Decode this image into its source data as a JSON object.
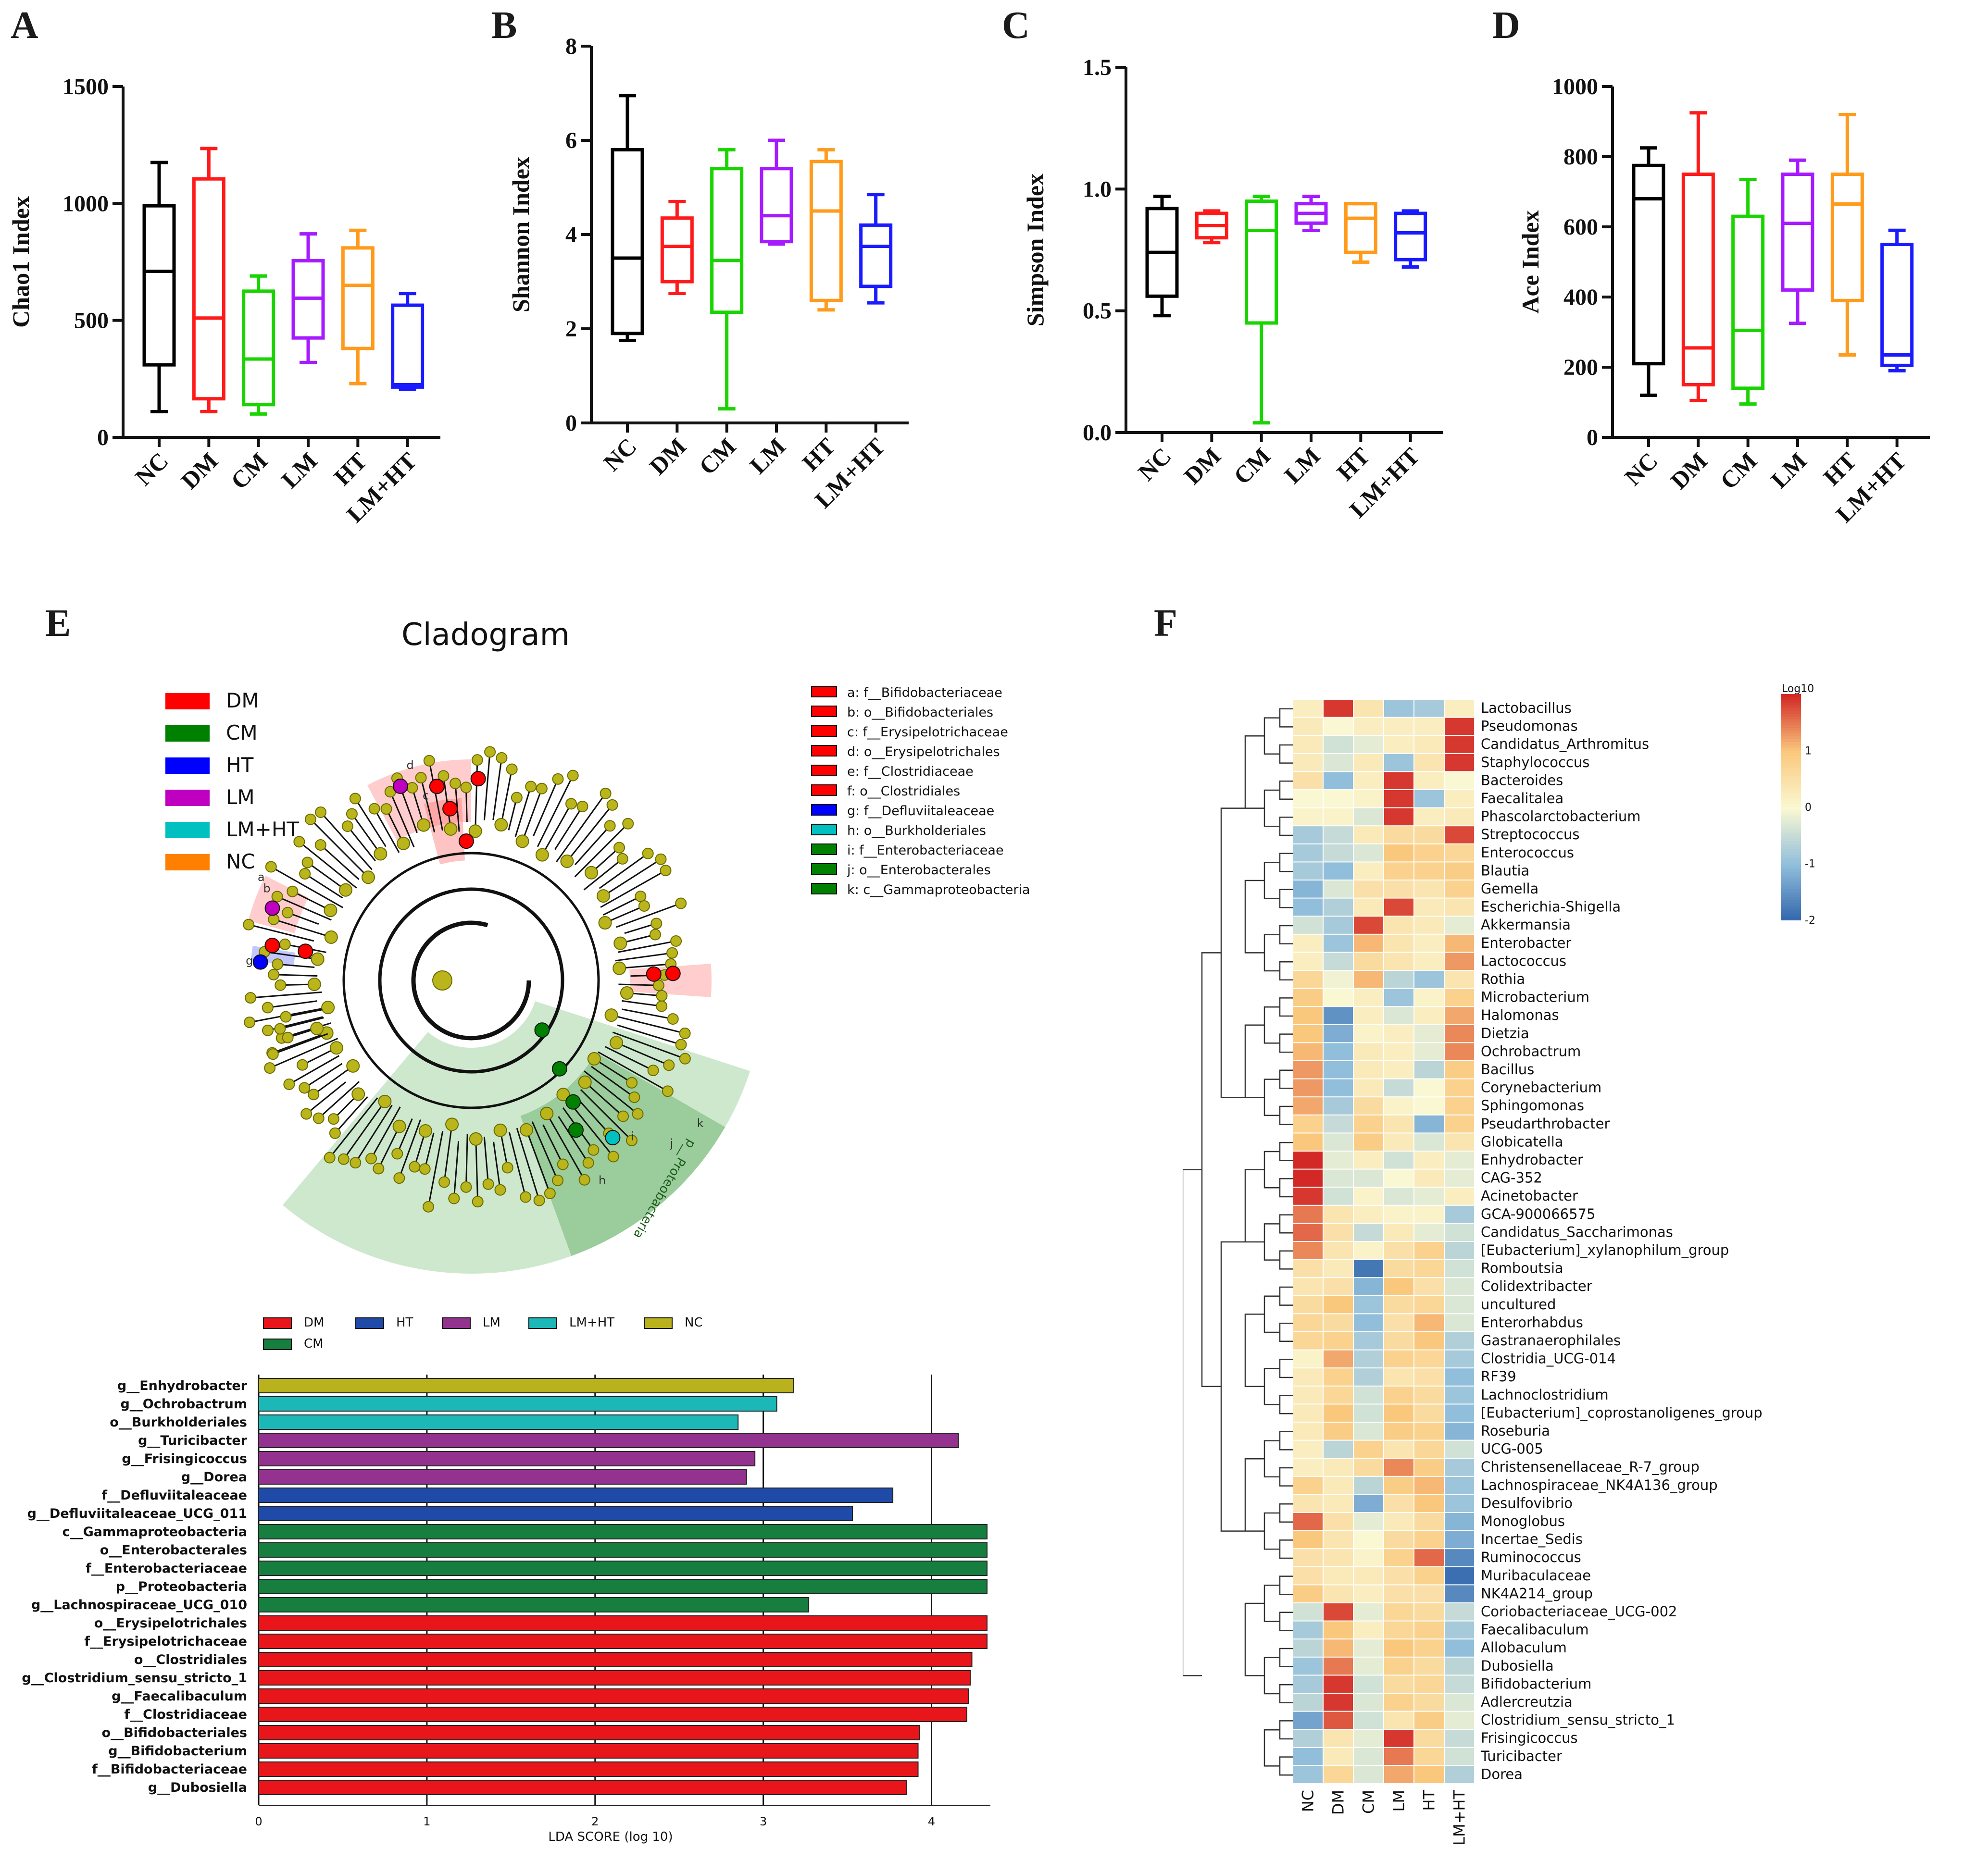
{
  "panels": {
    "a": "A",
    "b": "B",
    "c": "C",
    "d": "D",
    "e": "E",
    "f": "F"
  },
  "groups": [
    "NC",
    "DM",
    "CM",
    "LM",
    "HT",
    "LM+HT"
  ],
  "group_colors": {
    "NC": "#000000",
    "DM": "#ff1a1a",
    "CM": "#19d400",
    "LM": "#a51aff",
    "HT": "#ff9a1a",
    "LM+HT": "#1a1aff"
  },
  "chart_data": [
    {
      "type": "box",
      "panel": "A",
      "ylabel": "Chao1 Index",
      "ylim": [
        0,
        1500
      ],
      "yticks": [
        0,
        500,
        1000,
        1500
      ],
      "categories": [
        "NC",
        "DM",
        "CM",
        "LM",
        "HT",
        "LM+HT"
      ],
      "boxes": [
        {
          "min": 110,
          "q1": 310,
          "median": 710,
          "q3": 990,
          "max": 1175
        },
        {
          "min": 110,
          "q1": 165,
          "median": 510,
          "q3": 1105,
          "max": 1235
        },
        {
          "min": 100,
          "q1": 140,
          "median": 335,
          "q3": 625,
          "max": 690
        },
        {
          "min": 320,
          "q1": 425,
          "median": 595,
          "q3": 755,
          "max": 870
        },
        {
          "min": 230,
          "q1": 380,
          "median": 650,
          "q3": 810,
          "max": 885
        },
        {
          "min": 205,
          "q1": 215,
          "median": 225,
          "q3": 565,
          "max": 615
        }
      ]
    },
    {
      "type": "box",
      "panel": "B",
      "ylabel": "Shannon Index",
      "ylim": [
        0,
        8
      ],
      "yticks": [
        0,
        2,
        4,
        6,
        8
      ],
      "categories": [
        "NC",
        "DM",
        "CM",
        "LM",
        "HT",
        "LM+HT"
      ],
      "boxes": [
        {
          "min": 1.75,
          "q1": 1.9,
          "median": 3.5,
          "q3": 5.8,
          "max": 6.95
        },
        {
          "min": 2.75,
          "q1": 3.0,
          "median": 3.75,
          "q3": 4.35,
          "max": 4.7
        },
        {
          "min": 0.3,
          "q1": 2.35,
          "median": 3.45,
          "q3": 5.4,
          "max": 5.8
        },
        {
          "min": 3.8,
          "q1": 3.85,
          "median": 4.4,
          "q3": 5.4,
          "max": 6.0
        },
        {
          "min": 2.4,
          "q1": 2.6,
          "median": 4.5,
          "q3": 5.55,
          "max": 5.8
        },
        {
          "min": 2.55,
          "q1": 2.9,
          "median": 3.75,
          "q3": 4.2,
          "max": 4.85
        }
      ]
    },
    {
      "type": "box",
      "panel": "C",
      "ylabel": "Simpson Index",
      "ylim": [
        0,
        1.5
      ],
      "yticks": [
        "0.0",
        "0.5",
        "1.0",
        "1.5"
      ],
      "categories": [
        "NC",
        "DM",
        "CM",
        "LM",
        "HT",
        "LM+HT"
      ],
      "boxes": [
        {
          "min": 0.48,
          "q1": 0.56,
          "median": 0.74,
          "q3": 0.92,
          "max": 0.97
        },
        {
          "min": 0.78,
          "q1": 0.8,
          "median": 0.85,
          "q3": 0.9,
          "max": 0.91
        },
        {
          "min": 0.04,
          "q1": 0.45,
          "median": 0.83,
          "q3": 0.95,
          "max": 0.97
        },
        {
          "min": 0.83,
          "q1": 0.86,
          "median": 0.9,
          "q3": 0.94,
          "max": 0.97
        },
        {
          "min": 0.7,
          "q1": 0.74,
          "median": 0.88,
          "q3": 0.94,
          "max": 0.94
        },
        {
          "min": 0.68,
          "q1": 0.71,
          "median": 0.82,
          "q3": 0.9,
          "max": 0.91
        }
      ]
    },
    {
      "type": "box",
      "panel": "D",
      "ylabel": "Ace Index",
      "ylim": [
        0,
        1000
      ],
      "yticks": [
        0,
        200,
        400,
        600,
        800,
        1000
      ],
      "categories": [
        "NC",
        "DM",
        "CM",
        "LM",
        "HT",
        "LM+HT"
      ],
      "boxes": [
        {
          "min": 120,
          "q1": 210,
          "median": 680,
          "q3": 775,
          "max": 825
        },
        {
          "min": 105,
          "q1": 150,
          "median": 255,
          "q3": 750,
          "max": 925
        },
        {
          "min": 95,
          "q1": 140,
          "median": 305,
          "q3": 630,
          "max": 735
        },
        {
          "min": 325,
          "q1": 420,
          "median": 610,
          "q3": 750,
          "max": 790
        },
        {
          "min": 235,
          "q1": 390,
          "median": 665,
          "q3": 750,
          "max": 920
        },
        {
          "min": 190,
          "q1": 205,
          "median": 235,
          "q3": 550,
          "max": 590
        }
      ]
    },
    {
      "type": "bar",
      "panel": "E",
      "orientation": "horizontal",
      "xlabel": "LDA SCORE (log 10)",
      "xlim": [
        0,
        4.35
      ],
      "xticks": [
        0,
        1,
        2,
        3,
        4
      ],
      "legend": [
        {
          "label": "DM",
          "color": "#e8151b"
        },
        {
          "label": "HT",
          "color": "#1f4aa8"
        },
        {
          "label": "LM",
          "color": "#94338f"
        },
        {
          "label": "LM+HT",
          "color": "#1cb8b8"
        },
        {
          "label": "NC",
          "color": "#b9b21c"
        },
        {
          "label": "CM",
          "color": "#167e3e"
        }
      ],
      "bars": [
        {
          "label": "g__Enhydrobacter",
          "value": 3.18,
          "group": "NC"
        },
        {
          "label": "g__Ochrobactrum",
          "value": 3.08,
          "group": "LM+HT"
        },
        {
          "label": "o__Burkholderiales",
          "value": 2.85,
          "group": "LM+HT"
        },
        {
          "label": "g__Turicibacter",
          "value": 4.16,
          "group": "LM"
        },
        {
          "label": "g__Frisingicoccus",
          "value": 2.95,
          "group": "LM"
        },
        {
          "label": "g__Dorea",
          "value": 2.9,
          "group": "LM"
        },
        {
          "label": "f__Defluviitaleaceae",
          "value": 3.77,
          "group": "HT"
        },
        {
          "label": "g__Defluviitaleaceae_UCG_011",
          "value": 3.53,
          "group": "HT"
        },
        {
          "label": "c__Gammaproteobacteria",
          "value": 4.33,
          "group": "CM"
        },
        {
          "label": "o__Enterobacterales",
          "value": 4.33,
          "group": "CM"
        },
        {
          "label": "f__Enterobacteriaceae",
          "value": 4.33,
          "group": "CM"
        },
        {
          "label": "p__Proteobacteria",
          "value": 4.33,
          "group": "CM"
        },
        {
          "label": "g__Lachnospiraceae_UCG_010",
          "value": 3.27,
          "group": "CM"
        },
        {
          "label": "o__Erysipelotrichales",
          "value": 4.33,
          "group": "DM"
        },
        {
          "label": "f__Erysipelotrichaceae",
          "value": 4.33,
          "group": "DM"
        },
        {
          "label": "o__Clostridiales",
          "value": 4.24,
          "group": "DM"
        },
        {
          "label": "g__Clostridium_sensu_stricto_1",
          "value": 4.23,
          "group": "DM"
        },
        {
          "label": "g__Faecalibaculum",
          "value": 4.22,
          "group": "DM"
        },
        {
          "label": "f__Clostridiaceae",
          "value": 4.21,
          "group": "DM"
        },
        {
          "label": "o__Bifidobacteriales",
          "value": 3.93,
          "group": "DM"
        },
        {
          "label": "g__Bifidobacterium",
          "value": 3.92,
          "group": "DM"
        },
        {
          "label": "f__Bifidobacteriaceae",
          "value": 3.92,
          "group": "DM"
        },
        {
          "label": "g__Dubosiella",
          "value": 3.85,
          "group": "DM"
        }
      ]
    },
    {
      "type": "heatmap",
      "panel": "F",
      "colorbar_title": "Log10",
      "colorbar_ticks": [
        "1",
        "0",
        "-1",
        "-2"
      ],
      "vmin": -2,
      "vmax": 2,
      "columns": [
        "NC",
        "DM",
        "CM",
        "LM",
        "HT",
        "LM+HT"
      ],
      "rows": [
        "Lactobacillus",
        "Pseudomonas",
        "Candidatus_Arthromitus",
        "Staphylococcus",
        "Bacteroides",
        "Faecalitalea",
        "Phascolarctobacterium",
        "Streptococcus",
        "Enterococcus",
        "Blautia",
        "Gemella",
        "Escherichia-Shigella",
        "Akkermansia",
        "Enterobacter",
        "Lactococcus",
        "Rothia",
        "Microbacterium",
        "Halomonas",
        "Dietzia",
        "Ochrobactrum",
        "Bacillus",
        "Corynebacterium",
        "Sphingomonas",
        "Pseudarthrobacter",
        "Globicatella",
        "Enhydrobacter",
        "CAG-352",
        "Acinetobacter",
        "GCA-900066575",
        "Candidatus_Saccharimonas",
        "[Eubacterium]_xylanophilum_group",
        "Romboutsia",
        "Colidextribacter",
        "uncultured",
        "Enterorhabdus",
        "Gastranaerophilales",
        "Clostridia_UCG-014",
        "RF39",
        "Lachnoclostridium",
        "[Eubacterium]_coprostanoligenes_group",
        "Roseburia",
        "UCG-005",
        "Christensenellaceae_R-7_group",
        "Lachnospiraceae_NK4A136_group",
        "Desulfovibrio",
        "Monoglobus",
        "Incertae_Sedis",
        "Ruminococcus",
        "Muribaculaceae",
        "NK4A214_group",
        "Coriobacteriaceae_UCG-002",
        "Faecalibaculum",
        "Allobaculum",
        "Dubosiella",
        "Bifidobacterium",
        "Adlercreutzia",
        "Clostridium_sensu_stricto_1",
        "Frisingicoccus",
        "Turicibacter",
        "Dorea"
      ],
      "values": [
        [
          0.2,
          1.9,
          0.4,
          -0.9,
          -0.8,
          0.2
        ],
        [
          0.3,
          0.0,
          0.2,
          0.2,
          0.2,
          1.9
        ],
        [
          0.3,
          -0.4,
          -0.2,
          0.2,
          0.3,
          1.9
        ],
        [
          0.3,
          -0.3,
          0.3,
          -0.9,
          0.4,
          1.9
        ],
        [
          0.5,
          -1.0,
          0.2,
          1.9,
          0.2,
          0.0
        ],
        [
          0.0,
          0.0,
          0.1,
          1.9,
          -0.9,
          0.2
        ],
        [
          0.1,
          0.1,
          -0.3,
          1.9,
          0.2,
          0.3
        ],
        [
          -0.8,
          -0.5,
          0.3,
          0.6,
          0.6,
          1.8
        ],
        [
          -0.8,
          -0.5,
          -0.3,
          1.0,
          0.8,
          0.7
        ],
        [
          -0.8,
          -1.0,
          0.2,
          0.8,
          0.8,
          0.9
        ],
        [
          -1.1,
          -0.3,
          0.5,
          0.5,
          0.4,
          0.8
        ],
        [
          -1.0,
          -0.7,
          0.3,
          1.8,
          0.3,
          0.4
        ],
        [
          -0.4,
          -0.8,
          1.8,
          0.4,
          0.3,
          -0.2
        ],
        [
          0.2,
          -0.9,
          1.1,
          0.4,
          0.2,
          1.1
        ],
        [
          0.2,
          -0.5,
          0.6,
          0.4,
          0.2,
          1.3
        ],
        [
          0.7,
          -0.1,
          1.1,
          -0.6,
          -0.9,
          0.4
        ],
        [
          0.9,
          0.0,
          0.2,
          -0.9,
          0.1,
          0.8
        ],
        [
          1.0,
          -1.5,
          0.2,
          -0.3,
          0.2,
          1.2
        ],
        [
          1.0,
          -1.2,
          0.1,
          0.2,
          -0.2,
          1.4
        ],
        [
          1.1,
          -1.0,
          0.3,
          0.2,
          -0.2,
          1.4
        ],
        [
          1.3,
          -1.0,
          0.3,
          0.2,
          -0.6,
          0.9
        ],
        [
          1.3,
          -1.0,
          0.3,
          -0.5,
          0.0,
          0.8
        ],
        [
          1.2,
          -0.8,
          0.6,
          0.1,
          0.0,
          0.8
        ],
        [
          0.8,
          -0.5,
          0.8,
          0.4,
          -1.1,
          0.8
        ],
        [
          1.0,
          -0.3,
          0.9,
          0.3,
          -0.3,
          0.4
        ],
        [
          2.0,
          -0.2,
          0.2,
          -0.4,
          0.2,
          -0.2
        ],
        [
          2.0,
          -0.3,
          -0.3,
          0.0,
          0.3,
          -0.2
        ],
        [
          1.9,
          -0.4,
          0.1,
          -0.3,
          -0.2,
          0.2
        ],
        [
          1.5,
          0.4,
          0.2,
          0.1,
          0.1,
          -0.8
        ],
        [
          1.6,
          0.5,
          -0.5,
          0.3,
          -0.2,
          -0.4
        ],
        [
          1.4,
          0.4,
          0.1,
          0.5,
          0.8,
          -0.6
        ],
        [
          0.5,
          0.3,
          -1.8,
          0.6,
          0.7,
          -0.4
        ],
        [
          0.4,
          0.5,
          -1.1,
          1.0,
          0.5,
          -0.3
        ],
        [
          0.6,
          1.0,
          -0.9,
          0.6,
          0.7,
          -0.3
        ],
        [
          0.7,
          0.6,
          -1.0,
          0.5,
          1.1,
          -0.3
        ],
        [
          0.7,
          0.8,
          -0.8,
          0.6,
          1.0,
          -0.7
        ],
        [
          0.1,
          1.2,
          -0.7,
          0.8,
          0.7,
          -0.8
        ],
        [
          0.3,
          0.8,
          -0.7,
          0.4,
          0.5,
          -1.0
        ],
        [
          0.3,
          0.7,
          -0.4,
          0.8,
          0.6,
          -0.9
        ],
        [
          0.3,
          1.0,
          -0.4,
          1.0,
          0.6,
          -1.0
        ],
        [
          0.3,
          0.9,
          -0.3,
          0.9,
          0.8,
          -1.1
        ],
        [
          0.2,
          -0.6,
          0.8,
          0.4,
          0.7,
          -0.4
        ],
        [
          0.2,
          0.3,
          0.6,
          1.4,
          0.9,
          -0.8
        ],
        [
          0.8,
          0.3,
          -0.6,
          0.9,
          1.1,
          -0.9
        ],
        [
          0.4,
          0.3,
          -1.2,
          0.5,
          1.0,
          -0.9
        ],
        [
          1.6,
          0.5,
          -0.2,
          0.3,
          0.6,
          -1.1
        ],
        [
          1.0,
          0.4,
          0.0,
          0.6,
          0.8,
          -1.2
        ],
        [
          0.5,
          0.4,
          0.1,
          0.8,
          1.6,
          -1.6
        ],
        [
          0.5,
          0.3,
          0.3,
          0.5,
          0.8,
          -1.9
        ],
        [
          0.9,
          0.4,
          0.2,
          0.5,
          0.5,
          -1.6
        ],
        [
          -0.4,
          1.8,
          -0.2,
          0.7,
          0.6,
          -0.5
        ],
        [
          -0.8,
          1.0,
          0.2,
          0.7,
          0.8,
          -0.8
        ],
        [
          -0.6,
          1.1,
          -0.2,
          1.0,
          0.8,
          -1.0
        ],
        [
          -0.9,
          1.5,
          -0.2,
          0.8,
          0.6,
          -0.6
        ],
        [
          -0.8,
          1.9,
          -0.4,
          0.6,
          0.7,
          -0.5
        ],
        [
          -0.6,
          1.9,
          -0.3,
          0.8,
          0.6,
          -0.3
        ],
        [
          -1.3,
          1.7,
          -0.4,
          0.4,
          0.9,
          -0.2
        ],
        [
          -0.7,
          0.4,
          -0.2,
          1.9,
          0.6,
          -0.5
        ],
        [
          -1.0,
          0.3,
          -0.3,
          1.5,
          0.7,
          -0.4
        ],
        [
          -0.9,
          0.7,
          -0.3,
          1.2,
          1.0,
          -0.7
        ]
      ]
    }
  ],
  "cladogram": {
    "title": "Cladogram",
    "legend": [
      {
        "label": "DM",
        "color": "#ff0000"
      },
      {
        "label": "CM",
        "color": "#008000"
      },
      {
        "label": "HT",
        "color": "#0000ff"
      },
      {
        "label": "LM",
        "color": "#c000c0"
      },
      {
        "label": "LM+HT",
        "color": "#00c0c0"
      },
      {
        "label": "NC",
        "color": "#ff8000"
      }
    ],
    "key": [
      {
        "text": "a: f__Bifidobacteriaceae",
        "color": "#ff0000"
      },
      {
        "text": "b: o__Bifidobacteriales",
        "color": "#ff0000"
      },
      {
        "text": "c: f__Erysipelotrichaceae",
        "color": "#ff0000"
      },
      {
        "text": "d: o__Erysipelotrichales",
        "color": "#ff0000"
      },
      {
        "text": "e: f__Clostridiaceae",
        "color": "#ff0000"
      },
      {
        "text": "f: o__Clostridiales",
        "color": "#ff0000"
      },
      {
        "text": "g: f__Defluviitaleaceae",
        "color": "#0000ff"
      },
      {
        "text": "h: o__Burkholderiales",
        "color": "#00c0c0"
      },
      {
        "text": "i: f__Enterobacteriaceae",
        "color": "#008000"
      },
      {
        "text": "j: o__Enterobacterales",
        "color": "#008000"
      },
      {
        "text": "k: c__Gammaproteobacteria",
        "color": "#008000"
      }
    ],
    "node_labels": [
      "a",
      "b",
      "c",
      "d",
      "g",
      "h",
      "i",
      "j",
      "k",
      "p__Proteobacteria"
    ]
  }
}
